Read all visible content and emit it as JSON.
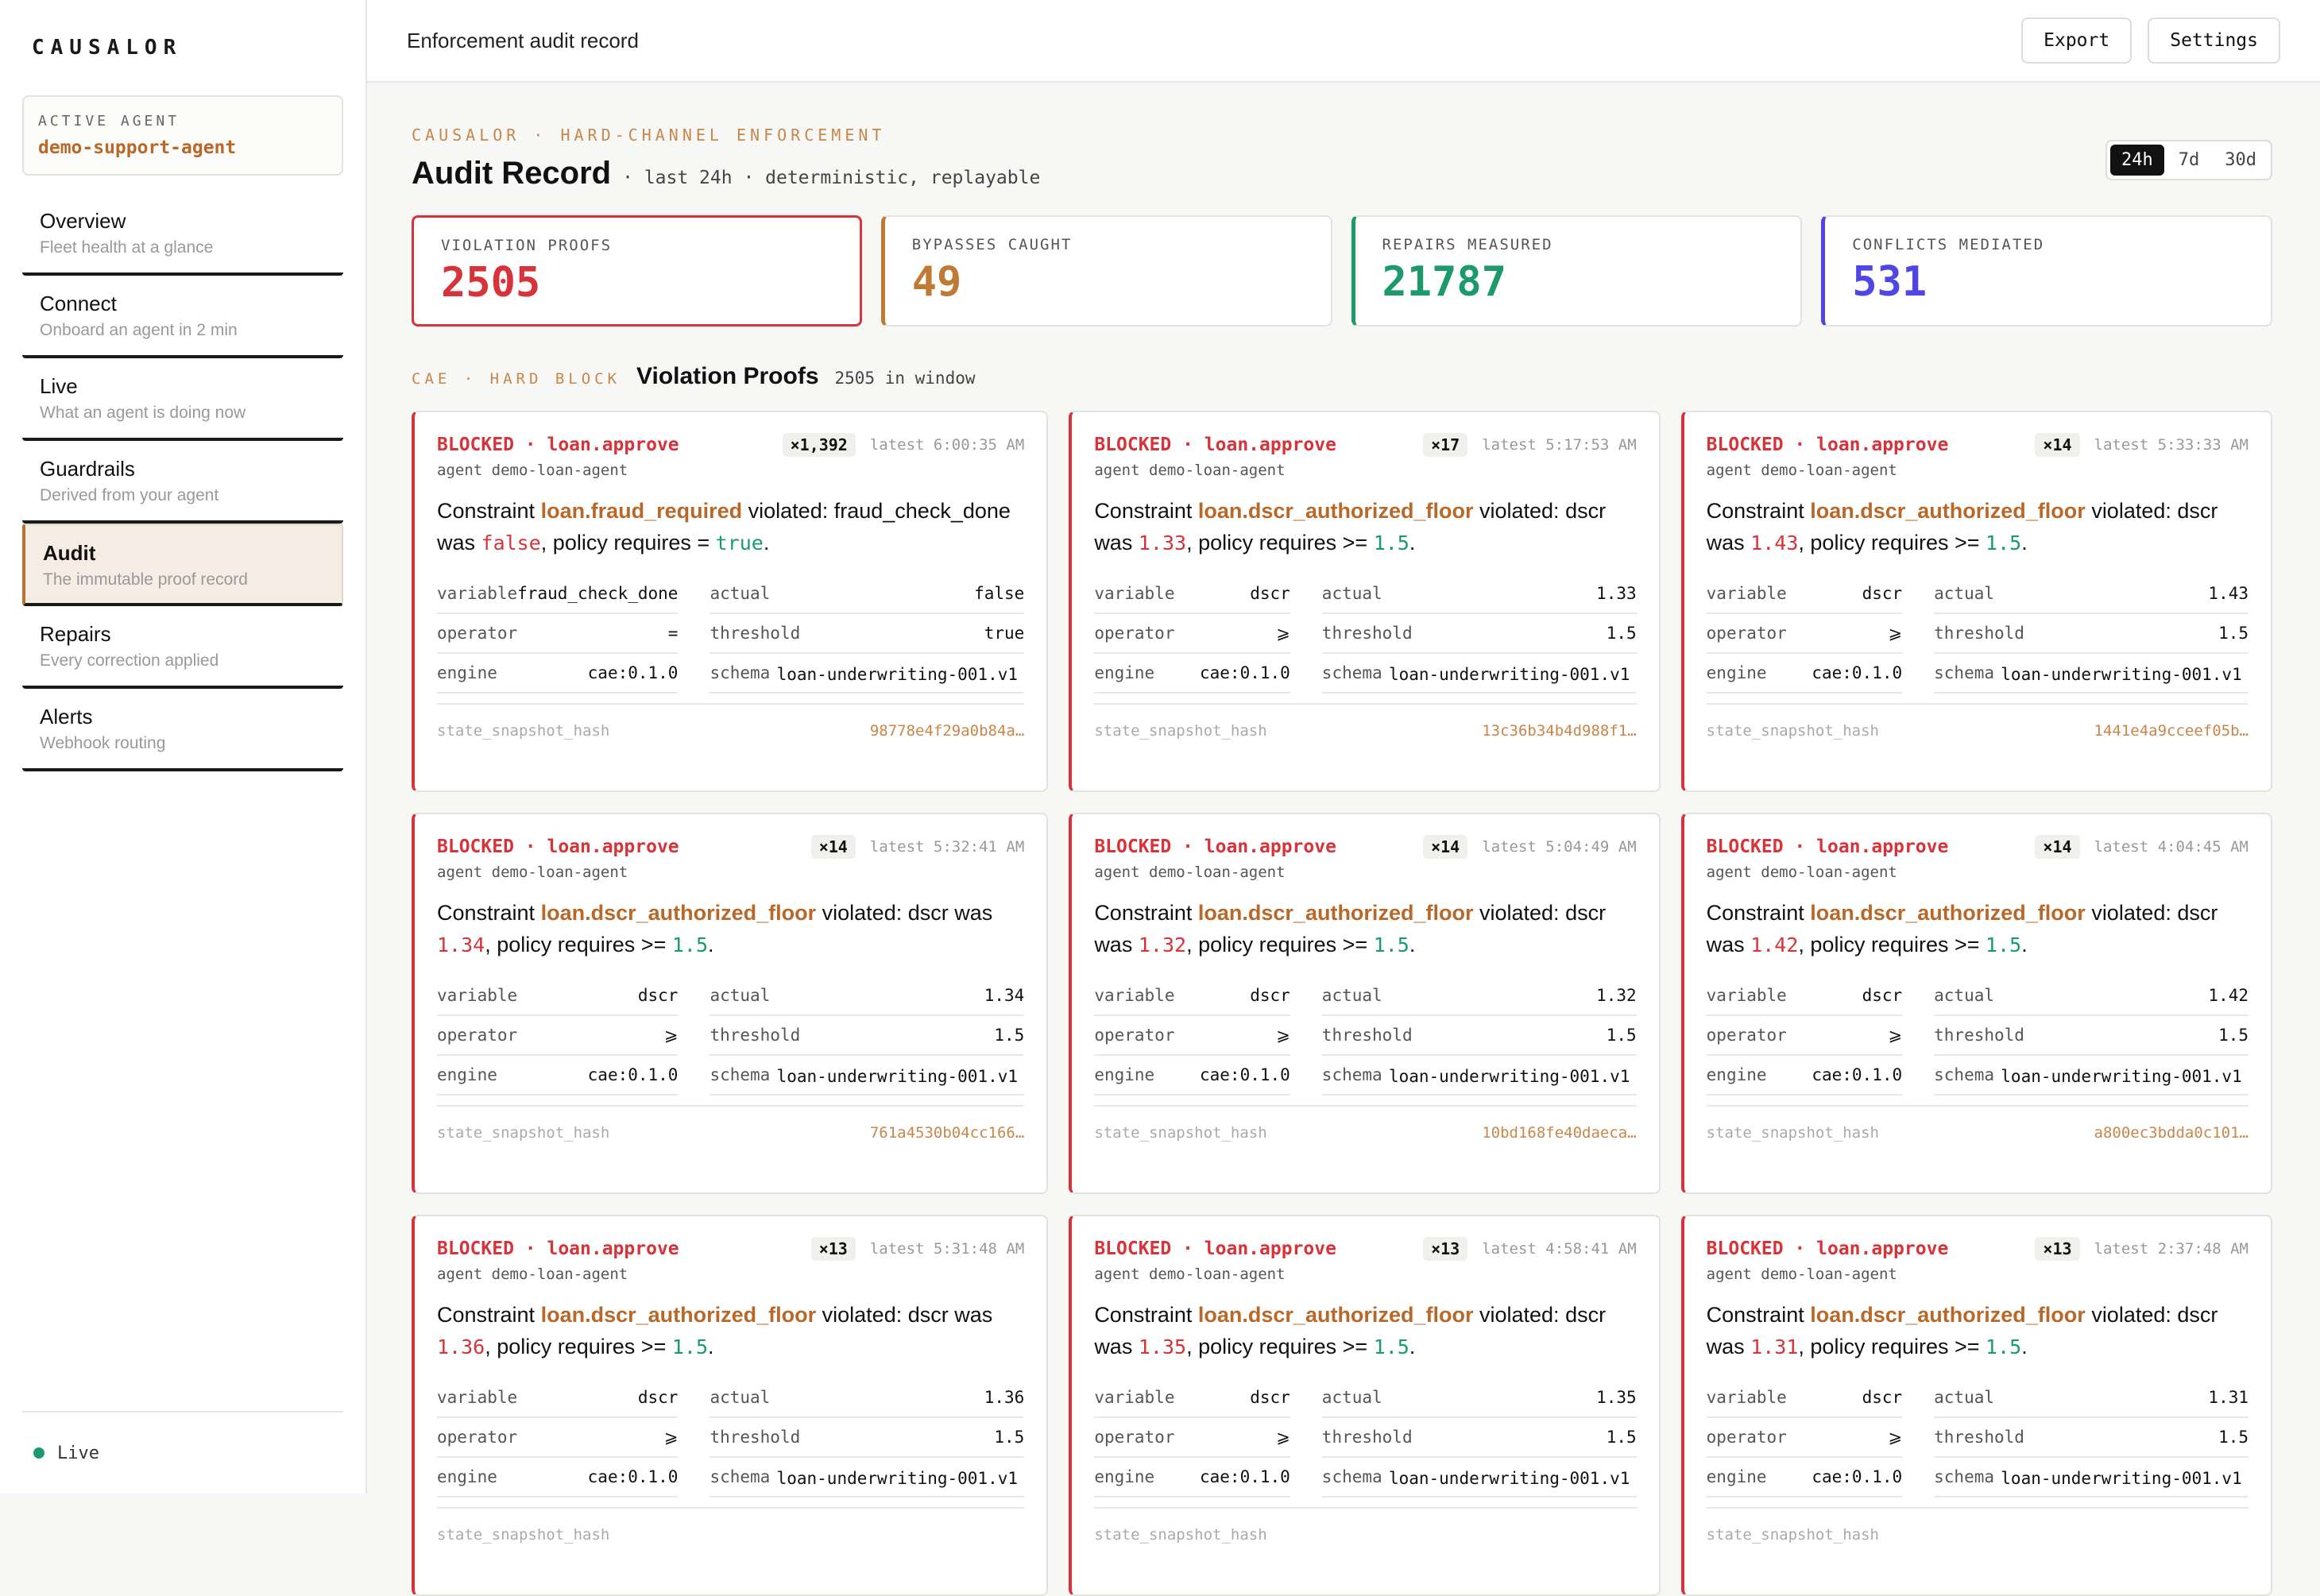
{
  "brand": {
    "logo_text": "CAUSALOR"
  },
  "active_agent": {
    "label": "ACTIVE AGENT",
    "value": "demo-support-agent"
  },
  "nav": [
    {
      "title": "Overview",
      "subtitle": "Fleet health at a glance"
    },
    {
      "title": "Connect",
      "subtitle": "Onboard an agent in 2 min"
    },
    {
      "title": "Live",
      "subtitle": "What an agent is doing now"
    },
    {
      "title": "Guardrails",
      "subtitle": "Derived from your agent"
    },
    {
      "title": "Audit",
      "subtitle": "The immutable proof record",
      "active": true
    },
    {
      "title": "Repairs",
      "subtitle": "Every correction applied"
    },
    {
      "title": "Alerts",
      "subtitle": "Webhook routing"
    }
  ],
  "footer": {
    "status": "Live"
  },
  "topbar": {
    "title": "Enforcement audit record",
    "export_label": "Export",
    "settings_label": "Settings"
  },
  "header": {
    "eyebrow": "CAUSALOR · HARD-CHANNEL ENFORCEMENT",
    "title": "Audit Record",
    "subtitle": "· last 24h · deterministic, replayable",
    "ranges": [
      "24h",
      "7d",
      "30d"
    ],
    "selected_range": "24h"
  },
  "stats": [
    {
      "label": "VIOLATION PROOFS",
      "value": "2505",
      "color": "#d6333a"
    },
    {
      "label": "BYPASSES CAUGHT",
      "value": "49",
      "color": "#c07a35"
    },
    {
      "label": "REPAIRS MEASURED",
      "value": "21787",
      "color": "#1d9a6c"
    },
    {
      "label": "CONFLICTS MEDIATED",
      "value": "531",
      "color": "#5046e5"
    }
  ],
  "section": {
    "eyebrow": "CAE · HARD BLOCK",
    "title": "Violation Proofs",
    "count": "2505 in window"
  },
  "labels": {
    "variable": "variable",
    "actual": "actual",
    "operator": "operator",
    "threshold": "threshold",
    "engine": "engine",
    "schema": "schema",
    "hash": "state_snapshot_hash",
    "constraint": "Constraint",
    "violated": "violated:"
  },
  "cards": [
    {
      "status": "BLOCKED · loan.approve",
      "count": "×1,392",
      "latest": "latest 6:00:35 AM",
      "agent": "agent demo-loan-agent",
      "constraint": "loan.fraud_required",
      "msg_a": "fraud_check_done was ",
      "actual_text": "false",
      "msg_b": ", policy requires = ",
      "threshold_text": "true",
      "msg_c": ".",
      "variable": "fraud_check_done",
      "actual": "false",
      "operator": "=",
      "threshold": "true",
      "engine": "cae:0.1.0",
      "schema": "loan-underwriting-001.v1",
      "hash": "98778e4f29a0b84a…"
    },
    {
      "status": "BLOCKED · loan.approve",
      "count": "×17",
      "latest": "latest 5:17:53 AM",
      "agent": "agent demo-loan-agent",
      "constraint": "loan.dscr_authorized_floor",
      "msg_a": "dscr was ",
      "actual_text": "1.33",
      "msg_b": ", policy requires >= ",
      "threshold_text": "1.5",
      "msg_c": ".",
      "variable": "dscr",
      "actual": "1.33",
      "operator": "⩾",
      "threshold": "1.5",
      "engine": "cae:0.1.0",
      "schema": "loan-underwriting-001.v1",
      "hash": "13c36b34b4d988f1…"
    },
    {
      "status": "BLOCKED · loan.approve",
      "count": "×14",
      "latest": "latest 5:33:33 AM",
      "agent": "agent demo-loan-agent",
      "constraint": "loan.dscr_authorized_floor",
      "msg_a": "dscr was ",
      "actual_text": "1.43",
      "msg_b": ", policy requires >= ",
      "threshold_text": "1.5",
      "msg_c": ".",
      "variable": "dscr",
      "actual": "1.43",
      "operator": "⩾",
      "threshold": "1.5",
      "engine": "cae:0.1.0",
      "schema": "loan-underwriting-001.v1",
      "hash": "1441e4a9cceef05b…"
    },
    {
      "status": "BLOCKED · loan.approve",
      "count": "×14",
      "latest": "latest 5:32:41 AM",
      "agent": "agent demo-loan-agent",
      "constraint": "loan.dscr_authorized_floor",
      "msg_a": "dscr was ",
      "actual_text": "1.34",
      "msg_b": ", policy requires >= ",
      "threshold_text": "1.5",
      "msg_c": ".",
      "variable": "dscr",
      "actual": "1.34",
      "operator": "⩾",
      "threshold": "1.5",
      "engine": "cae:0.1.0",
      "schema": "loan-underwriting-001.v1",
      "hash": "761a4530b04cc166…"
    },
    {
      "status": "BLOCKED · loan.approve",
      "count": "×14",
      "latest": "latest 5:04:49 AM",
      "agent": "agent demo-loan-agent",
      "constraint": "loan.dscr_authorized_floor",
      "msg_a": "dscr was ",
      "actual_text": "1.32",
      "msg_b": ", policy requires >= ",
      "threshold_text": "1.5",
      "msg_c": ".",
      "variable": "dscr",
      "actual": "1.32",
      "operator": "⩾",
      "threshold": "1.5",
      "engine": "cae:0.1.0",
      "schema": "loan-underwriting-001.v1",
      "hash": "10bd168fe40daeca…"
    },
    {
      "status": "BLOCKED · loan.approve",
      "count": "×14",
      "latest": "latest 4:04:45 AM",
      "agent": "agent demo-loan-agent",
      "constraint": "loan.dscr_authorized_floor",
      "msg_a": "dscr was ",
      "actual_text": "1.42",
      "msg_b": ", policy requires >= ",
      "threshold_text": "1.5",
      "msg_c": ".",
      "variable": "dscr",
      "actual": "1.42",
      "operator": "⩾",
      "threshold": "1.5",
      "engine": "cae:0.1.0",
      "schema": "loan-underwriting-001.v1",
      "hash": "a800ec3bdda0c101…"
    },
    {
      "status": "BLOCKED · loan.approve",
      "count": "×13",
      "latest": "latest 5:31:48 AM",
      "agent": "agent demo-loan-agent",
      "constraint": "loan.dscr_authorized_floor",
      "msg_a": "dscr was ",
      "actual_text": "1.36",
      "msg_b": ", policy requires >= ",
      "threshold_text": "1.5",
      "msg_c": ".",
      "variable": "dscr",
      "actual": "1.36",
      "operator": "⩾",
      "threshold": "1.5",
      "engine": "cae:0.1.0",
      "schema": "loan-underwriting-001.v1",
      "hash": ""
    },
    {
      "status": "BLOCKED · loan.approve",
      "count": "×13",
      "latest": "latest 4:58:41 AM",
      "agent": "agent demo-loan-agent",
      "constraint": "loan.dscr_authorized_floor",
      "msg_a": "dscr was ",
      "actual_text": "1.35",
      "msg_b": ", policy requires >= ",
      "threshold_text": "1.5",
      "msg_c": ".",
      "variable": "dscr",
      "actual": "1.35",
      "operator": "⩾",
      "threshold": "1.5",
      "engine": "cae:0.1.0",
      "schema": "loan-underwriting-001.v1",
      "hash": ""
    },
    {
      "status": "BLOCKED · loan.approve",
      "count": "×13",
      "latest": "latest 2:37:48 AM",
      "agent": "agent demo-loan-agent",
      "constraint": "loan.dscr_authorized_floor",
      "msg_a": "dscr was ",
      "actual_text": "1.31",
      "msg_b": ", policy requires >= ",
      "threshold_text": "1.5",
      "msg_c": ".",
      "variable": "dscr",
      "actual": "1.31",
      "operator": "⩾",
      "threshold": "1.5",
      "engine": "cae:0.1.0",
      "schema": "loan-underwriting-001.v1",
      "hash": ""
    }
  ]
}
